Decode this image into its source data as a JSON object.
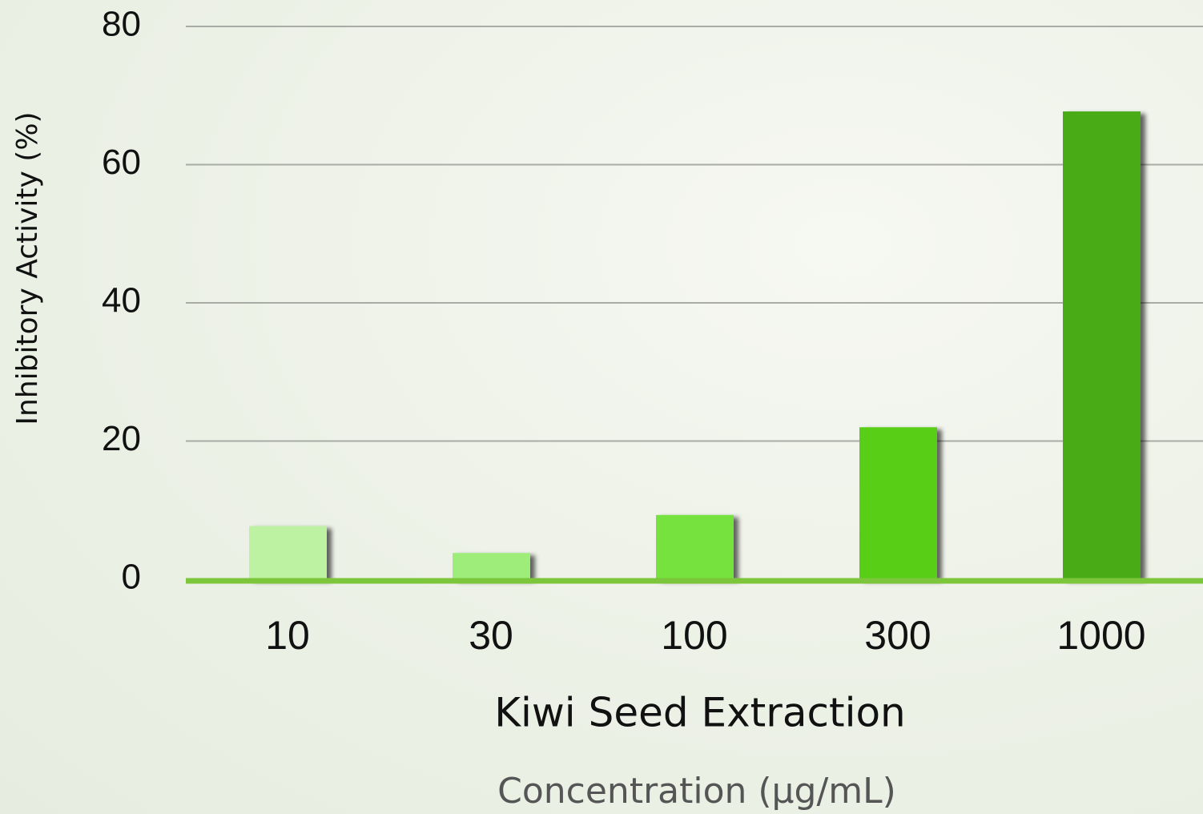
{
  "chart_data": {
    "type": "bar",
    "x_label": "Kiwi Seed Extraction",
    "subtitle": "Concentration (μg/mL)",
    "y_label": "Inhibitory Activity (%)",
    "categories": [
      "10",
      "30",
      "100",
      "300",
      "1000"
    ],
    "values": [
      7.7,
      3.8,
      9.3,
      22.0,
      67.7
    ],
    "colors": [
      "#bdf2a2",
      "#9eec7a",
      "#74e23e",
      "#58cf18",
      "#48ac18"
    ],
    "ylim": [
      0,
      80
    ],
    "yticks": [
      0,
      20,
      40,
      60,
      80
    ],
    "grid": true
  }
}
